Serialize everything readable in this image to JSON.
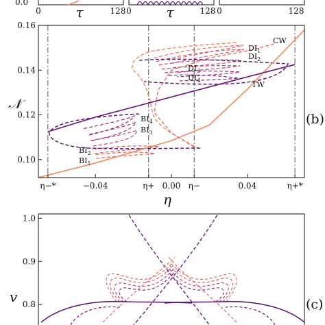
{
  "top_strip": {
    "ytick": "0.0",
    "panels": [
      {
        "xticks": [
          "0",
          "128"
        ],
        "xlabel": "τ"
      },
      {
        "xticks": [
          "0",
          "128"
        ],
        "xlabel": "τ"
      },
      {
        "xticks": [
          "0",
          "128"
        ],
        "xlabel": ""
      }
    ]
  },
  "colors": {
    "cw": "#f08c62",
    "tw": "#6b1d7a",
    "di1": "#e3675e",
    "di2": "#d5596a",
    "di3": "#b8416f",
    "di4": "#8f2c77",
    "branch": "#5a1a6e"
  },
  "chart_data": [
    {
      "type": "line",
      "panel_label": "(b)",
      "xlabel": "η",
      "ylabel": "𝒩",
      "xlim": [
        -0.07,
        0.07
      ],
      "ylim": [
        0.092,
        0.16
      ],
      "xticks": [
        {
          "value": -0.065,
          "label": "η−*"
        },
        {
          "value": -0.04,
          "label": "−0.04"
        },
        {
          "value": -0.012,
          "label": "η+"
        },
        {
          "value": 0.0,
          "label": "0.00"
        },
        {
          "value": 0.012,
          "label": "η−"
        },
        {
          "value": 0.04,
          "label": "0.04"
        },
        {
          "value": 0.065,
          "label": "η+*"
        }
      ],
      "yticks": [
        "0.10",
        "0.12",
        "0.14",
        "0.16"
      ],
      "vlines": [
        -0.065,
        -0.012,
        0.012,
        0.065
      ],
      "annotations": [
        "CW",
        "TW",
        "DI1",
        "DI2",
        "DI3",
        "DI4",
        "BI1",
        "BI2",
        "BI3",
        "BI4"
      ],
      "series": [
        {
          "name": "CW",
          "x": [
            -0.07,
            -0.04,
            0.0,
            0.02,
            0.04,
            0.07
          ],
          "y": [
            0.092,
            0.0985,
            0.1085,
            0.1155,
            0.1315,
            0.158
          ]
        },
        {
          "name": "TW",
          "x": [
            -0.065,
            -0.04,
            0.0,
            0.04,
            0.065
          ],
          "y": [
            0.1125,
            0.119,
            0.128,
            0.137,
            0.1425
          ]
        },
        {
          "name": "",
          "x": [
            0.012,
            0.0,
            -0.009,
            -0.007,
            0.0,
            0.02,
            0.042,
            0.055
          ],
          "y": [
            0.1055,
            0.112,
            0.121,
            0.131,
            0.14,
            0.1455,
            0.149,
            0.152
          ]
        }
      ]
    },
    {
      "type": "line",
      "panel_label": "(c)",
      "ylabel": "v",
      "yticks": [
        "0.8",
        "0.9",
        "1.0"
      ],
      "ylim": [
        0.74,
        1.01
      ]
    }
  ]
}
